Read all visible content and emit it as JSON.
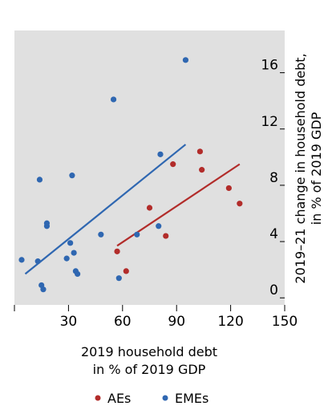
{
  "chart_data": {
    "type": "scatter",
    "xlabel_lines": [
      "2019 household debt",
      "in % of 2019 GDP"
    ],
    "ylabel_lines": [
      "2019–21 change in household debt,",
      "in % of 2019 GDP"
    ],
    "x_ticks": [
      30,
      60,
      90,
      120,
      150
    ],
    "y_ticks": [
      0,
      4,
      8,
      12,
      16
    ],
    "xlim": [
      0,
      150
    ],
    "ylim": [
      -0.5,
      19
    ],
    "grid": false,
    "legend_position": "bottom",
    "series": [
      {
        "name": "AEs",
        "color": "#b22c2a",
        "points": [
          [
            57,
            3.3
          ],
          [
            62,
            1.9
          ],
          [
            75,
            6.4
          ],
          [
            84,
            4.4
          ],
          [
            88,
            9.5
          ],
          [
            103,
            10.4
          ],
          [
            104,
            9.1
          ],
          [
            119,
            7.8
          ],
          [
            125,
            6.7
          ]
        ],
        "trend": [
          [
            57,
            3.7
          ],
          [
            125,
            9.5
          ]
        ]
      },
      {
        "name": "EMEs",
        "color": "#2f67b1",
        "points": [
          [
            4,
            2.7
          ],
          [
            13,
            2.6
          ],
          [
            14,
            8.4
          ],
          [
            15,
            0.9
          ],
          [
            16,
            0.6
          ],
          [
            18,
            5.1
          ],
          [
            18,
            5.3
          ],
          [
            29,
            2.8
          ],
          [
            31,
            3.9
          ],
          [
            32,
            8.7
          ],
          [
            33,
            3.2
          ],
          [
            34,
            1.9
          ],
          [
            35,
            1.7
          ],
          [
            48,
            4.5
          ],
          [
            55,
            14.1
          ],
          [
            58,
            1.4
          ],
          [
            68,
            4.5
          ],
          [
            80,
            5.1
          ],
          [
            81,
            10.2
          ],
          [
            95,
            16.9
          ]
        ],
        "trend": [
          [
            6,
            1.7
          ],
          [
            95,
            10.9
          ]
        ]
      }
    ]
  }
}
